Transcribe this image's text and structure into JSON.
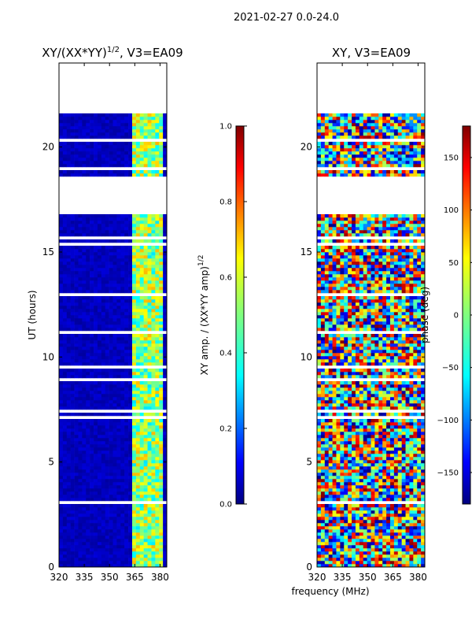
{
  "suptitle": "2021-02-27 0.0-24.0",
  "xlabel_shared": "frequency (MHz)",
  "chart_data": [
    {
      "type": "heatmap",
      "title": "XY/(XX*YY)^(1/2), V3=EA09",
      "title_main": "XY/(XX*YY)",
      "title_exp": "1/2",
      "title_suffix": ", V3=EA09",
      "xlabel": "frequency (MHz)",
      "ylabel": "UT (hours)",
      "xlim": [
        320,
        384
      ],
      "ylim": [
        0,
        24
      ],
      "xticks": [
        320,
        335,
        350,
        365,
        380
      ],
      "yticks": [
        0,
        5,
        10,
        15,
        20
      ],
      "colorbar": {
        "label": "XY amp. / (XX*YY amp)^(1/2)",
        "label_main": "XY amp. / (XX*YY amp)",
        "label_exp": "1/2",
        "range": [
          0.0,
          1.0
        ],
        "ticks": [
          "0.0",
          "0.2",
          "0.4",
          "0.6",
          "0.8",
          "1.0"
        ],
        "colormap": "jet"
      },
      "empty_ut_ranges": [
        [
          21.6,
          24.0
        ],
        [
          16.8,
          18.6
        ]
      ],
      "description": "amplitude mostly low (~0.05) with elevated 0.4-0.7 vertical band near 364-380 MHz"
    },
    {
      "type": "heatmap",
      "title": "XY, V3=EA09",
      "xlabel": "frequency (MHz)",
      "ylabel": "",
      "xlim": [
        320,
        384
      ],
      "ylim": [
        0,
        24
      ],
      "xticks": [
        320,
        335,
        350,
        365,
        380
      ],
      "yticks": [
        0,
        5,
        10,
        15,
        20
      ],
      "colorbar": {
        "label": "phase (deg)",
        "range": [
          -180,
          180
        ],
        "ticks": [
          "−150",
          "−100",
          "−50",
          "0",
          "50",
          "100",
          "150"
        ],
        "tick_values": [
          -150,
          -100,
          -50,
          0,
          50,
          100,
          150
        ],
        "colormap": "jet"
      },
      "empty_ut_ranges": [
        [
          21.6,
          24.0
        ],
        [
          16.8,
          18.6
        ]
      ],
      "description": "phase spans full range, noisy"
    }
  ],
  "colors": {
    "jet": [
      "#00007f",
      "#0000ff",
      "#007fff",
      "#00ffff",
      "#7fff7f",
      "#ffff00",
      "#ff7f00",
      "#ff0000",
      "#7f0000"
    ]
  }
}
